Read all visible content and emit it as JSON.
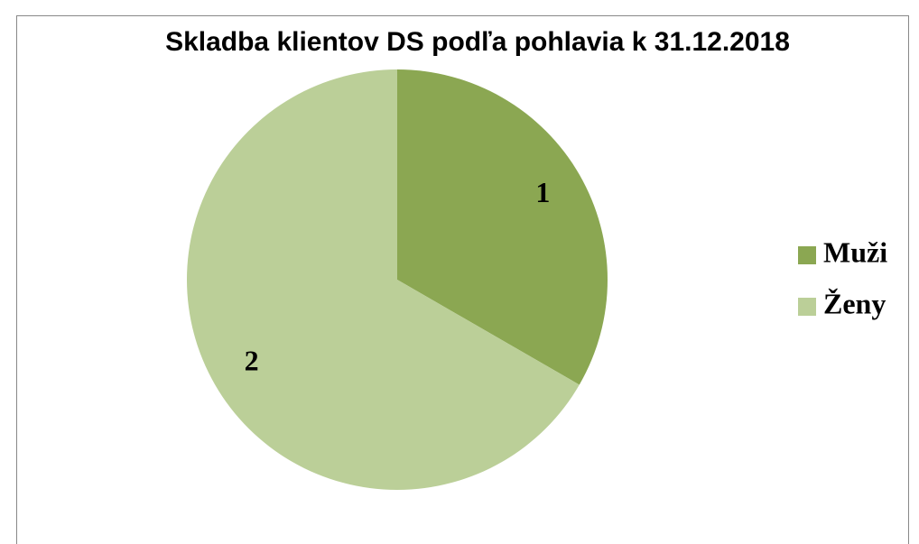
{
  "chart_data": {
    "type": "pie",
    "title": "Skladba klientov DS podľa pohlavia k 31.12.2018",
    "categories": [
      "Muži",
      "Ženy"
    ],
    "values": [
      1,
      2
    ],
    "colors": [
      "#8ba752",
      "#bbcf98"
    ],
    "legend": "right",
    "data_labels": true
  }
}
